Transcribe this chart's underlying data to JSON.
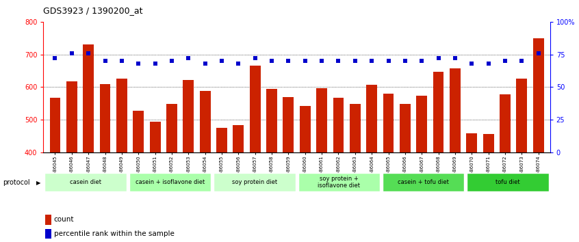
{
  "title": "GDS3923 / 1390200_at",
  "samples": [
    "GSM586045",
    "GSM586046",
    "GSM586047",
    "GSM586048",
    "GSM586049",
    "GSM586050",
    "GSM586051",
    "GSM586052",
    "GSM586053",
    "GSM586054",
    "GSM586055",
    "GSM586056",
    "GSM586057",
    "GSM586058",
    "GSM586059",
    "GSM586060",
    "GSM586061",
    "GSM586062",
    "GSM586063",
    "GSM586064",
    "GSM586065",
    "GSM586066",
    "GSM586067",
    "GSM586068",
    "GSM586069",
    "GSM586070",
    "GSM586071",
    "GSM586072",
    "GSM586073",
    "GSM586074"
  ],
  "counts": [
    568,
    618,
    730,
    610,
    625,
    528,
    494,
    548,
    622,
    588,
    476,
    483,
    665,
    595,
    570,
    543,
    597,
    568,
    548,
    607,
    580,
    548,
    573,
    648,
    658,
    459,
    457,
    578,
    625,
    750
  ],
  "percentiles": [
    72,
    76,
    76,
    70,
    70,
    68,
    68,
    70,
    72,
    68,
    70,
    68,
    72,
    70,
    70,
    70,
    70,
    70,
    70,
    70,
    70,
    70,
    70,
    72,
    72,
    68,
    68,
    70,
    70,
    76
  ],
  "protocols": [
    {
      "label": "casein diet",
      "start": 0,
      "end": 5,
      "color": "#ccffcc"
    },
    {
      "label": "casein + isoflavone diet",
      "start": 5,
      "end": 10,
      "color": "#aaffaa"
    },
    {
      "label": "soy protein diet",
      "start": 10,
      "end": 15,
      "color": "#ccffcc"
    },
    {
      "label": "soy protein +\nisoflavone diet",
      "start": 15,
      "end": 20,
      "color": "#aaffaa"
    },
    {
      "label": "casein + tofu diet",
      "start": 20,
      "end": 25,
      "color": "#55dd55"
    },
    {
      "label": "tofu diet",
      "start": 25,
      "end": 30,
      "color": "#33cc33"
    }
  ],
  "bar_color": "#cc2200",
  "pct_color": "#0000cc",
  "ylim_left": [
    400,
    800
  ],
  "ylim_right": [
    0,
    100
  ],
  "yticks_left": [
    400,
    500,
    600,
    700,
    800
  ],
  "yticks_right": [
    0,
    25,
    50,
    75,
    100
  ],
  "ytick_labels_right": [
    "0",
    "25",
    "50",
    "75",
    "100%"
  ],
  "grid_values": [
    500,
    600,
    700
  ],
  "ybaseline": 400
}
